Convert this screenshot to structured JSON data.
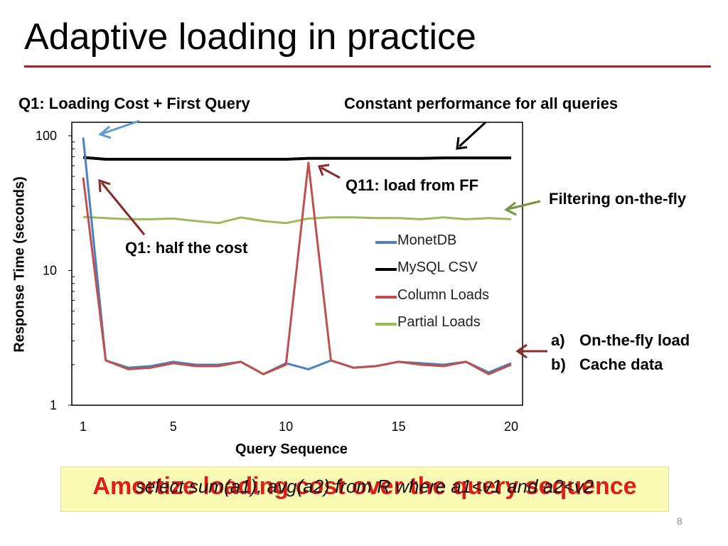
{
  "slide": {
    "title": "Adaptive loading in practice",
    "page_number": "8",
    "banner_text": "Amortize loading cost over the query sequence",
    "banner_query": "select sum(a1), avg(a2) from R where a1<v1 and a2<v2"
  },
  "annotations": {
    "q1_loading": "Q1: Loading Cost + First Query",
    "constant_perf": "Constant performance for all queries",
    "q11_load": "Q11: load from FF",
    "filtering": "Filtering on-the-fly",
    "q1_half": "Q1: half the cost",
    "list": [
      {
        "marker": "a)",
        "text": "On-the-fly load"
      },
      {
        "marker": "b)",
        "text": "Cache data"
      }
    ]
  },
  "colors": {
    "title_rule": "#b0202a",
    "monetdb": "#4a7fc1",
    "mysql": "#000000",
    "column": "#c0504d",
    "partial": "#9bbb59",
    "arrow_blue": "#5b9bd5",
    "arrow_dark_red": "#8b2a2a",
    "arrow_green": "#77933c",
    "banner_bg": "#fafab4",
    "banner_text": "#e11a1a"
  },
  "chart_data": {
    "type": "line",
    "xlabel": "Query Sequence",
    "ylabel": "Response Time (seconds)",
    "yscale": "log",
    "ylim": [
      1,
      100
    ],
    "xlim": [
      1,
      20
    ],
    "xticks": [
      1,
      5,
      10,
      15,
      20
    ],
    "yticks": [
      1,
      10,
      100
    ],
    "x": [
      1,
      2,
      3,
      4,
      5,
      6,
      7,
      8,
      9,
      10,
      11,
      12,
      13,
      14,
      15,
      16,
      17,
      18,
      19,
      20
    ],
    "series": [
      {
        "name": "MonetDB",
        "color": "#4a7fc1",
        "values": [
          97,
          2.15,
          1.9,
          1.95,
          2.1,
          2.0,
          2.0,
          2.1,
          1.7,
          2.05,
          1.85,
          2.15,
          1.9,
          1.95,
          2.1,
          2.05,
          2.0,
          2.1,
          1.75,
          2.05
        ]
      },
      {
        "name": "MySQL CSV",
        "color": "#000000",
        "values": [
          69,
          67,
          67,
          67,
          67,
          67,
          67,
          67,
          67,
          67,
          68,
          68,
          68,
          68,
          68,
          68,
          68.5,
          68.5,
          68.5,
          68.5
        ]
      },
      {
        "name": "Column Loads",
        "color": "#c0504d",
        "values": [
          49,
          2.15,
          1.85,
          1.9,
          2.05,
          1.95,
          1.95,
          2.1,
          1.7,
          2.0,
          63,
          2.15,
          1.9,
          1.95,
          2.1,
          2.0,
          1.95,
          2.1,
          1.7,
          2.0
        ]
      },
      {
        "name": "Partial Loads",
        "color": "#9bbb59",
        "values": [
          25,
          24.5,
          24,
          24,
          24.3,
          23.3,
          22.5,
          24.8,
          23.3,
          22.5,
          24.3,
          24.8,
          24.8,
          24.5,
          24.5,
          24,
          24.8,
          24,
          24.5,
          24
        ]
      }
    ],
    "legend_position": "inside-right"
  }
}
